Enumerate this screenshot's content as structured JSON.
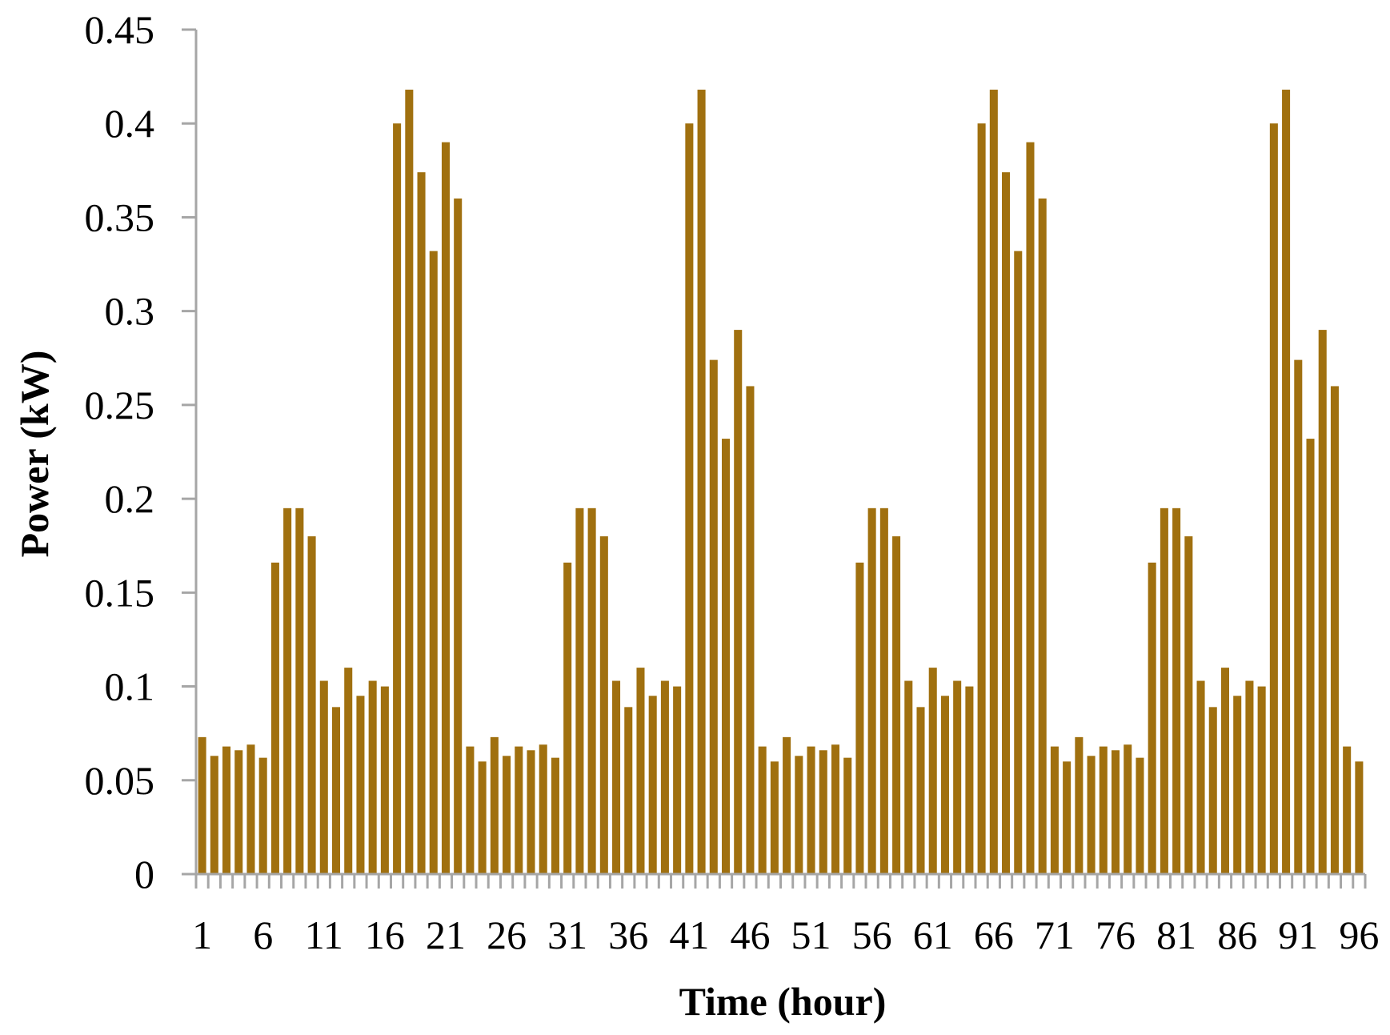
{
  "chart_data": {
    "type": "bar",
    "title": "",
    "xlabel": "Time (hour)",
    "ylabel": "Power (kW)",
    "ylim": [
      0,
      0.45
    ],
    "yticks": [
      "0",
      "0.05",
      "0.1",
      "0.15",
      "0.2",
      "0.25",
      "0.3",
      "0.35",
      "0.4",
      "0.45"
    ],
    "xtick_labels": [
      "1",
      "6",
      "11",
      "16",
      "21",
      "26",
      "31",
      "36",
      "41",
      "46",
      "51",
      "56",
      "61",
      "66",
      "71",
      "76",
      "81",
      "86",
      "91",
      "96"
    ],
    "grid": false,
    "legend": "none",
    "bar_color": "#A0700F",
    "axis_color": "#A6A6A6",
    "categories": [
      1,
      2,
      3,
      4,
      5,
      6,
      7,
      8,
      9,
      10,
      11,
      12,
      13,
      14,
      15,
      16,
      17,
      18,
      19,
      20,
      21,
      22,
      23,
      24,
      25,
      26,
      27,
      28,
      29,
      30,
      31,
      32,
      33,
      34,
      35,
      36,
      37,
      38,
      39,
      40,
      41,
      42,
      43,
      44,
      45,
      46,
      47,
      48,
      49,
      50,
      51,
      52,
      53,
      54,
      55,
      56,
      57,
      58,
      59,
      60,
      61,
      62,
      63,
      64,
      65,
      66,
      67,
      68,
      69,
      70,
      71,
      72,
      73,
      74,
      75,
      76,
      77,
      78,
      79,
      80,
      81,
      82,
      83,
      84,
      85,
      86,
      87,
      88,
      89,
      90,
      91,
      92,
      93,
      94,
      95,
      96
    ],
    "values": [
      0.073,
      0.063,
      0.068,
      0.066,
      0.069,
      0.062,
      0.166,
      0.195,
      0.195,
      0.18,
      0.103,
      0.089,
      0.11,
      0.095,
      0.103,
      0.1,
      0.4,
      0.418,
      0.374,
      0.332,
      0.39,
      0.36,
      0.068,
      0.06,
      0.073,
      0.063,
      0.068,
      0.066,
      0.069,
      0.062,
      0.166,
      0.195,
      0.195,
      0.18,
      0.103,
      0.089,
      0.11,
      0.095,
      0.103,
      0.1,
      0.4,
      0.418,
      0.274,
      0.232,
      0.29,
      0.26,
      0.068,
      0.06,
      0.073,
      0.063,
      0.068,
      0.066,
      0.069,
      0.062,
      0.166,
      0.195,
      0.195,
      0.18,
      0.103,
      0.089,
      0.11,
      0.095,
      0.103,
      0.1,
      0.4,
      0.418,
      0.374,
      0.332,
      0.39,
      0.36,
      0.068,
      0.06,
      0.073,
      0.063,
      0.068,
      0.066,
      0.069,
      0.062,
      0.166,
      0.195,
      0.195,
      0.18,
      0.103,
      0.089,
      0.11,
      0.095,
      0.103,
      0.1,
      0.4,
      0.418,
      0.274,
      0.232,
      0.29,
      0.26,
      0.068,
      0.06
    ]
  }
}
